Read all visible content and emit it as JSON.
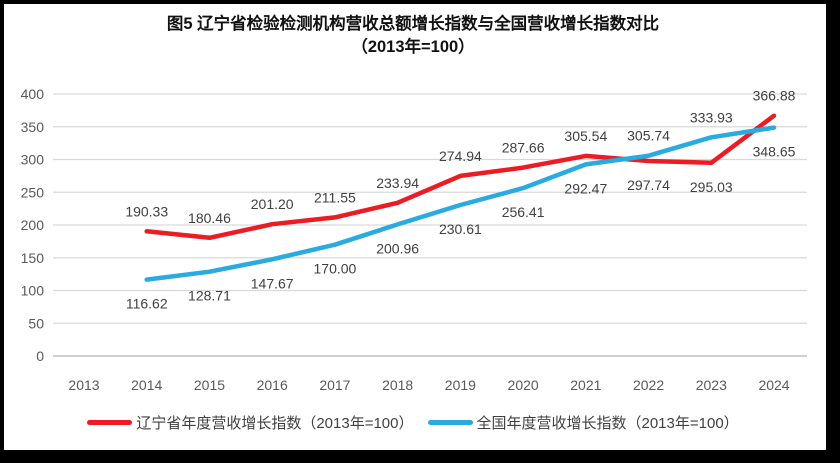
{
  "title": {
    "line1": "图5  辽宁省检验检测机构营收总额增长指数与全国营收增长指数对比",
    "line2": "（2013年=100）"
  },
  "chart_data": {
    "type": "line",
    "categories": [
      "2013",
      "2014",
      "2015",
      "2016",
      "2017",
      "2018",
      "2019",
      "2020",
      "2021",
      "2022",
      "2023",
      "2024"
    ],
    "series": [
      {
        "name": "辽宁省年度营收增长指数（2013年=100）",
        "color": "#EC1C24",
        "values": [
          null,
          190.33,
          180.46,
          201.2,
          211.55,
          233.94,
          274.94,
          287.66,
          305.54,
          297.74,
          295.03,
          366.88
        ]
      },
      {
        "name": "全国年度营收增长指数（2013年=100）",
        "color": "#29ABE2",
        "values": [
          null,
          116.62,
          128.71,
          147.67,
          170.0,
          200.96,
          230.61,
          256.41,
          292.47,
          305.74,
          333.93,
          348.65
        ]
      }
    ],
    "xlabel": "",
    "ylabel": "",
    "ylim": [
      0,
      400
    ],
    "ytick_step": 50,
    "grid": true,
    "data_labels": true,
    "label_decimals": 2,
    "legend_position": "bottom"
  },
  "colors": {
    "grid": "#D9D9D9",
    "axis_line": "#BFBFBF",
    "tick_text": "#595959",
    "data_label_text": "#3F3F3F",
    "title_text": "#111111",
    "frame_border": "#000000",
    "background": "#FFFFFF"
  }
}
